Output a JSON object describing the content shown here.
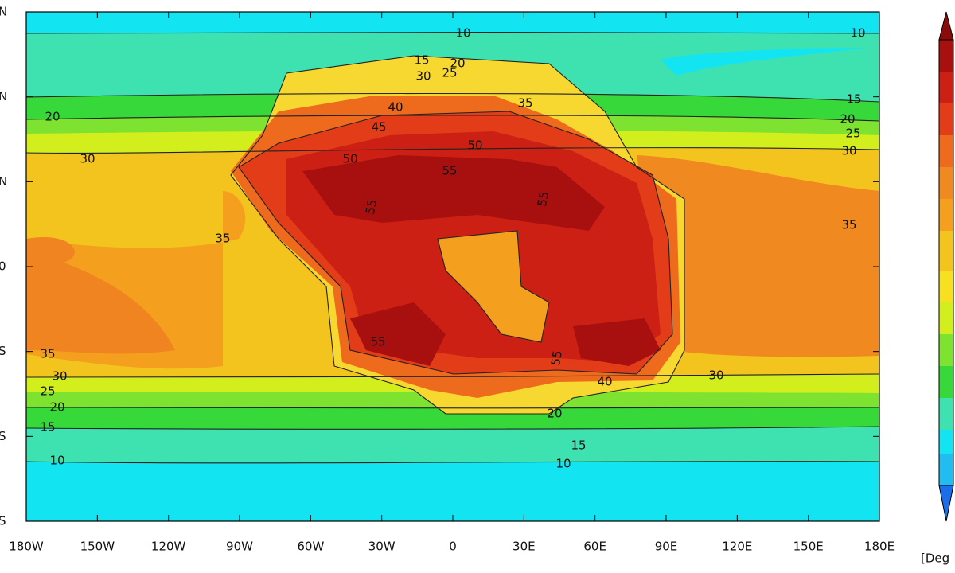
{
  "map": {
    "x_labels": [
      "180W",
      "150W",
      "120W",
      "90W",
      "60W",
      "30W",
      "0",
      "30E",
      "60E",
      "90E",
      "120E",
      "150E",
      "180E"
    ],
    "y_labels": [
      "N",
      "N",
      "N",
      "0",
      "S",
      "S",
      "S"
    ],
    "contour_labels": [
      "10",
      "10",
      "15",
      "20",
      "25",
      "30",
      "35",
      "40",
      "45",
      "50",
      "50",
      "55",
      "55",
      "55",
      "15",
      "20",
      "25",
      "30",
      "35",
      "20",
      "30",
      "35",
      "35",
      "30",
      "25",
      "20",
      "15",
      "10",
      "30",
      "40",
      "20",
      "15",
      "10",
      "55",
      "55"
    ],
    "colorbar_unit": "[Deg"
  }
}
